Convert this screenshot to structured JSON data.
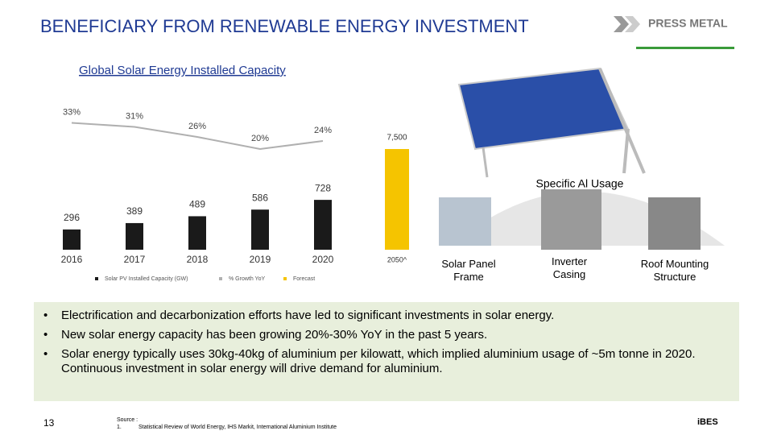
{
  "header": {
    "title": "BENEFICIARY FROM RENEWABLE ENERGY INVESTMENT",
    "logo": "PRESS METAL"
  },
  "chart_data": {
    "type": "combo",
    "title": "Global Solar Energy Installed Capacity",
    "categories": [
      "2016",
      "2017",
      "2018",
      "2019",
      "2020",
      "2050^"
    ],
    "series": [
      {
        "name": "Solar PV Installed Capacity (GW)",
        "type": "bar",
        "color": "#1a1a1a",
        "values": [
          296,
          389,
          489,
          586,
          728,
          null
        ]
      },
      {
        "name": "Forecast",
        "type": "bar",
        "color": "#f5c400",
        "axis": "y3",
        "values": [
          null,
          null,
          null,
          null,
          null,
          7500
        ],
        "value_labels": [
          null,
          null,
          null,
          null,
          null,
          "7,500"
        ]
      },
      {
        "name": "% Growth YoY",
        "type": "line",
        "color": "#b0b0b0",
        "axis": "y2",
        "values": [
          33,
          31,
          26,
          20,
          24,
          null
        ],
        "value_labels": [
          "33%",
          "31%",
          "26%",
          "20%",
          "24%",
          null
        ]
      }
    ],
    "ylim": [
      0,
      2000
    ],
    "y2lim": [
      -30,
      38
    ],
    "y3lim": [
      0,
      10200
    ]
  },
  "usage": {
    "title": "Specific Al Usage",
    "items": [
      "Solar Panel Frame",
      "Inverter Casing",
      "Roof Mounting Structure"
    ]
  },
  "bullets": [
    "Electrification and decarbonization efforts have led to significant investments in solar energy.",
    "New solar energy  capacity has been growing 20%-30% YoY in the past 5 years.",
    "Solar energy typically uses 30kg-40kg of aluminium per kilowatt, which implied aluminium usage of ~5m tonne in 2020. Continuous investment in solar energy will drive demand for aluminium."
  ],
  "footer": {
    "page": "13",
    "source_label": "Source :",
    "source_number": "1.",
    "source_text": "Statistical Review of World Energy, IHS Markit, International Aluminium Institute",
    "brand": "iBES"
  }
}
